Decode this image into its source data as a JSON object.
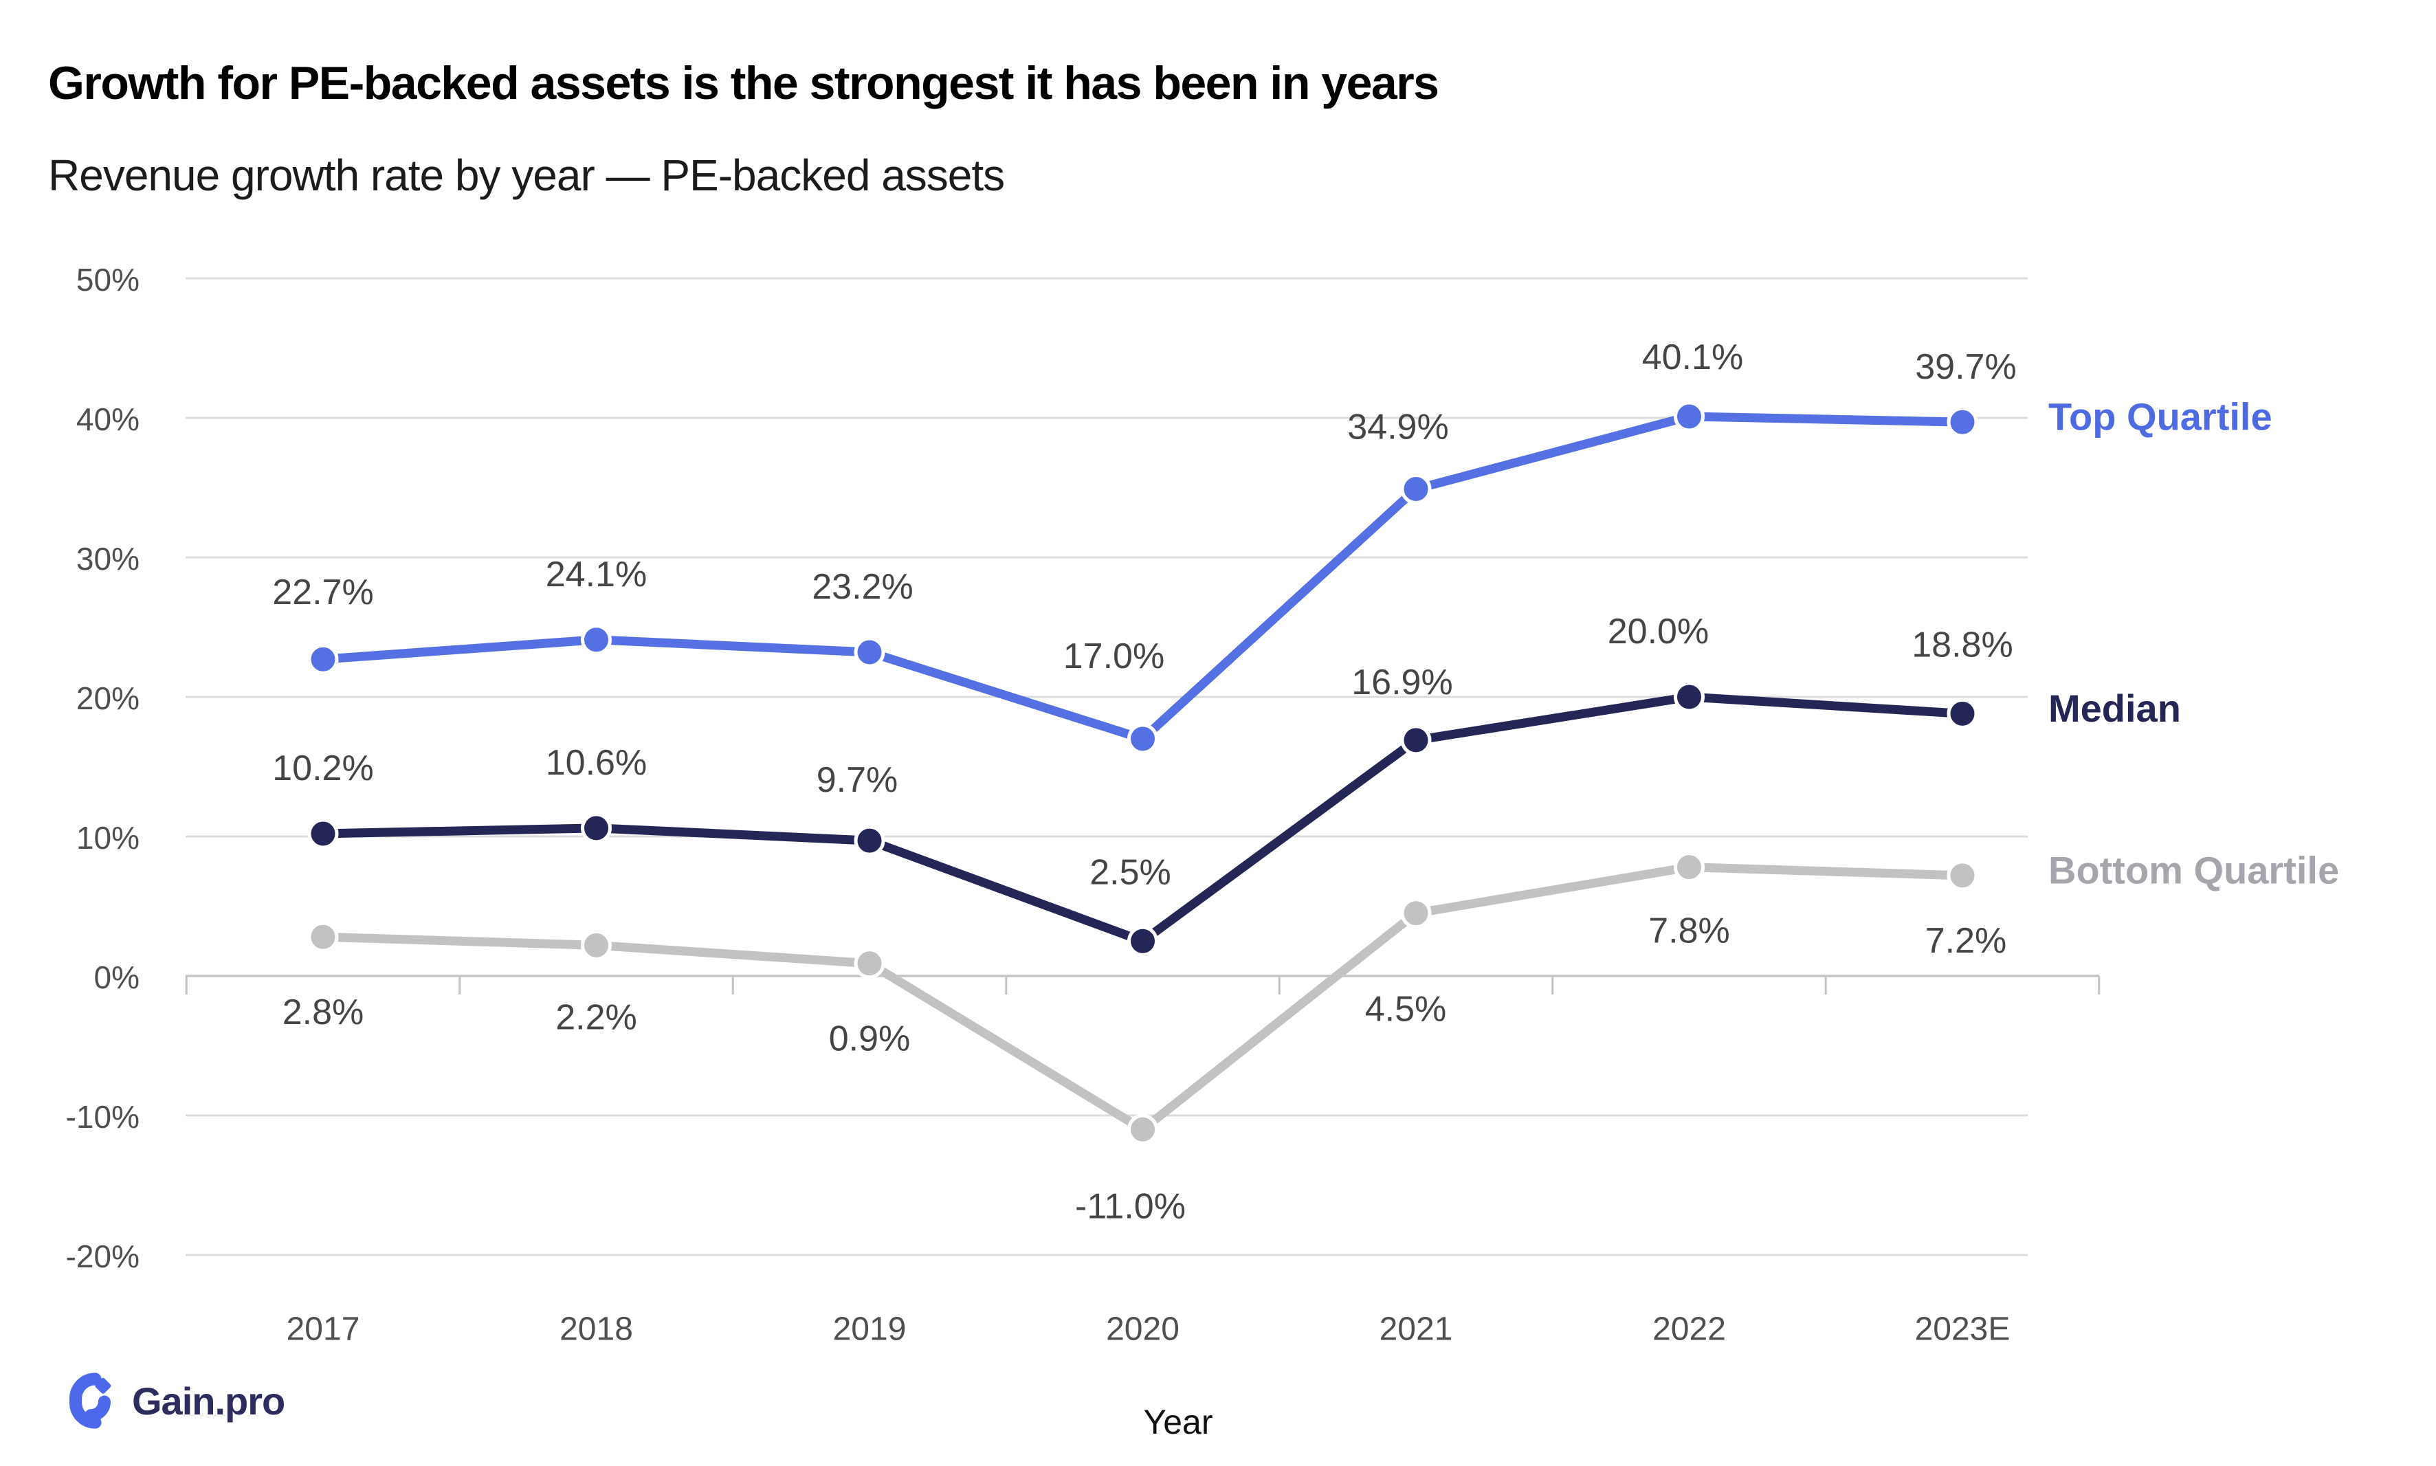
{
  "header": {
    "title": "Growth for PE-backed assets is the strongest it has been in years",
    "subtitle": "Revenue growth rate by year — PE-backed assets"
  },
  "chart_data": {
    "type": "line",
    "title": "Growth for PE-backed assets is the strongest it has been in years",
    "subtitle": "Revenue growth rate by year — PE-backed assets",
    "categories": [
      "2017",
      "2018",
      "2019",
      "2020",
      "2021",
      "2022",
      "2023E"
    ],
    "series": [
      {
        "name": "Top Quartile",
        "color": "#5570E2",
        "legend_color": "#4E6BE2",
        "values": [
          22.7,
          24.1,
          23.2,
          17.0,
          34.9,
          40.1,
          39.7
        ],
        "labels": [
          "22.7%",
          "24.1%",
          "23.2%",
          "17.0%",
          "34.9%",
          "40.1%",
          "39.7%"
        ]
      },
      {
        "name": "Median",
        "color": "#242656",
        "legend_color": "#242656",
        "values": [
          10.2,
          10.6,
          9.7,
          2.5,
          16.9,
          20.0,
          18.8
        ],
        "labels": [
          "10.2%",
          "10.6%",
          "9.7%",
          "2.5%",
          "16.9%",
          "20.0%",
          "18.8%"
        ]
      },
      {
        "name": "Bottom Quartile",
        "color": "#C2C2C4",
        "legend_color": "#A5A6AB",
        "values": [
          2.8,
          2.2,
          0.9,
          -11.0,
          4.5,
          7.8,
          7.2
        ],
        "labels": [
          "2.8%",
          "2.2%",
          "0.9%",
          "-11.0%",
          "4.5%",
          "7.8%",
          "7.2%"
        ]
      }
    ],
    "xlabel": "Year",
    "ylabel": "",
    "y_ticks": [
      50,
      40,
      30,
      20,
      10,
      0,
      -10,
      -20
    ],
    "y_tick_labels": [
      "50%",
      "40%",
      "30%",
      "20%",
      "10%",
      "0%",
      "-10%",
      "-20%"
    ],
    "ylim": [
      -20,
      50
    ],
    "grid": true,
    "legend_position": "right"
  },
  "colors": {
    "gridline": "#DCDCDC",
    "axis": "#C4C4C6",
    "data_label": "#454545",
    "tick_label": "#4F4F4F",
    "background": "#FFFFFF"
  },
  "brand": {
    "name": "Gain.pro",
    "icon_color": "#4D68EA",
    "text_color": "#2C2C5E"
  }
}
